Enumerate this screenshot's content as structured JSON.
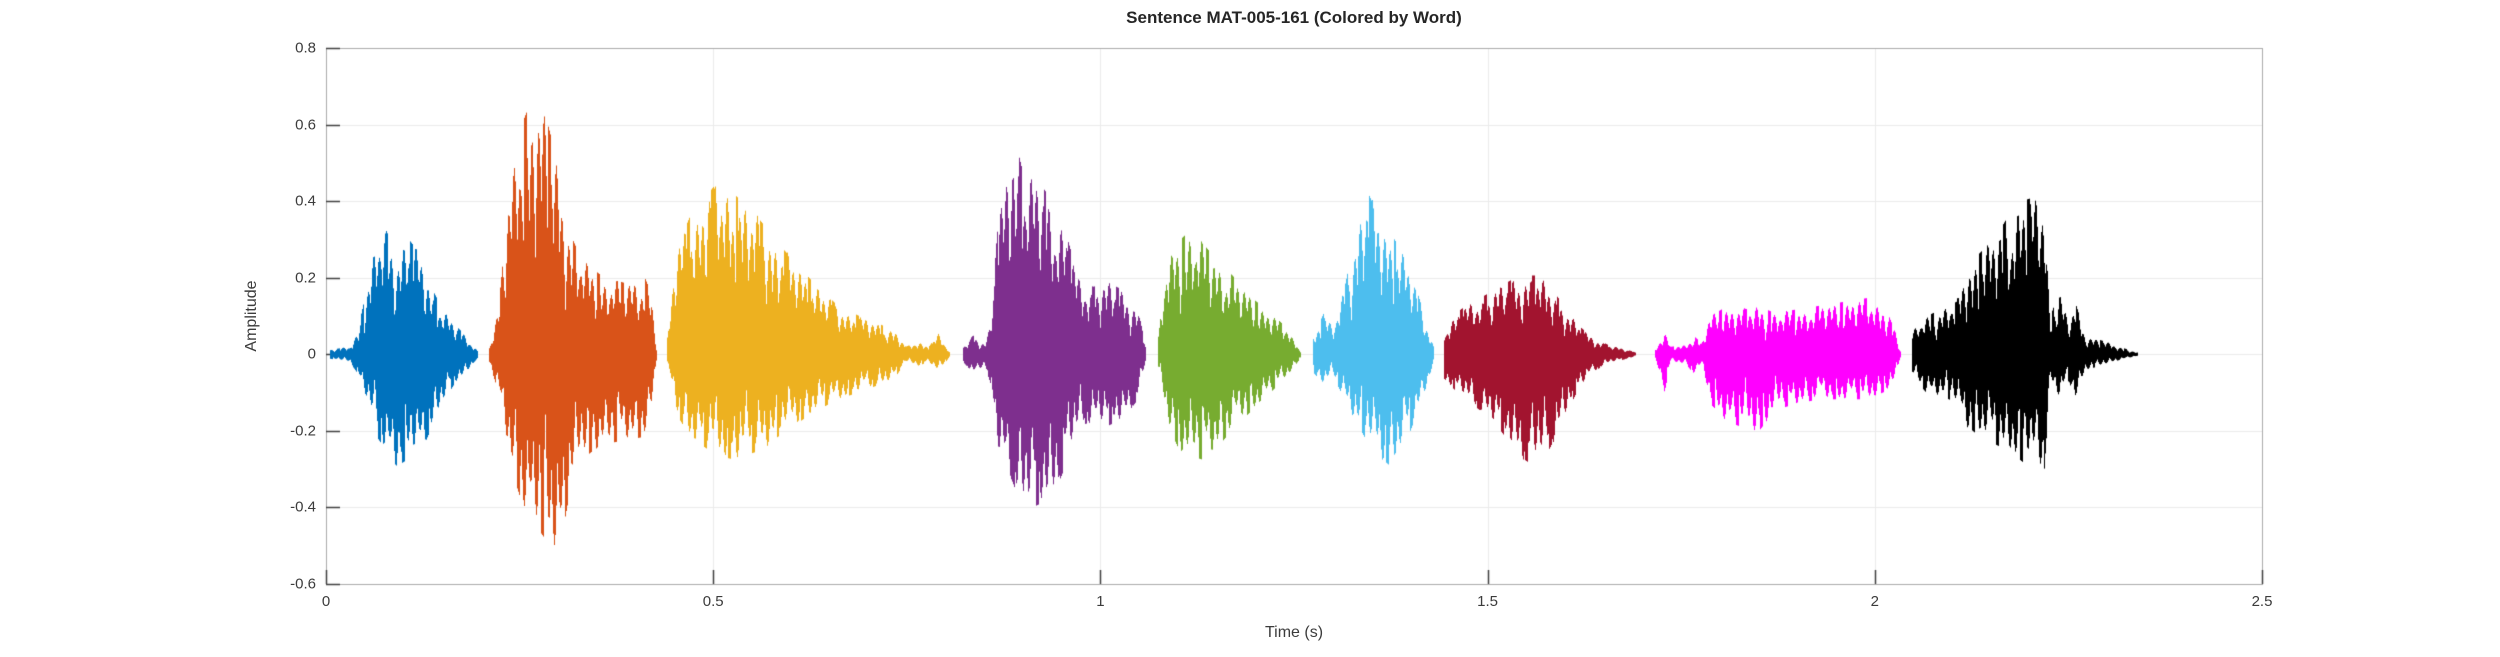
{
  "chart_data": {
    "type": "waveform",
    "title": "Sentence MAT-005-161 (Colored by Word)",
    "xlabel": "Time (s)",
    "ylabel": "Amplitude",
    "xlim": [
      0,
      2.5
    ],
    "ylim": [
      -0.6,
      0.8
    ],
    "grid": true,
    "x_ticks": {
      "values": [
        0,
        0.5,
        1,
        1.5,
        2,
        2.5
      ],
      "labels": [
        "0",
        "0.5",
        "1",
        "1.5",
        "2",
        "2.5"
      ]
    },
    "y_ticks": {
      "values": [
        -0.6,
        -0.4,
        -0.2,
        0,
        0.2,
        0.4,
        0.6,
        0.8
      ],
      "labels": [
        "-0.6",
        "-0.4",
        "-0.2",
        "0",
        "0.2",
        "0.4",
        "0.6",
        "0.8"
      ]
    },
    "style": {
      "grid_color": "#ebebeb",
      "box_color": "#ababab",
      "tick_color": "#404040",
      "background": "#ffffff"
    },
    "segments": [
      {
        "name": "word-1",
        "color": "#0072BD",
        "envelope": [
          [
            0.005,
            0.012,
            -0.012
          ],
          [
            0.03,
            0.02,
            -0.02
          ],
          [
            0.04,
            0.06,
            -0.05
          ],
          [
            0.055,
            0.2,
            -0.14
          ],
          [
            0.065,
            0.3,
            -0.22
          ],
          [
            0.075,
            0.34,
            -0.25
          ],
          [
            0.09,
            0.27,
            -0.3
          ],
          [
            0.105,
            0.31,
            -0.28
          ],
          [
            0.12,
            0.27,
            -0.27
          ],
          [
            0.135,
            0.18,
            -0.2
          ],
          [
            0.15,
            0.12,
            -0.13
          ],
          [
            0.165,
            0.08,
            -0.08
          ],
          [
            0.18,
            0.05,
            -0.05
          ],
          [
            0.195,
            0.01,
            -0.01
          ]
        ]
      },
      {
        "name": "word-2",
        "color": "#D95319",
        "envelope": [
          [
            0.21,
            0.02,
            -0.02
          ],
          [
            0.222,
            0.12,
            -0.1
          ],
          [
            0.235,
            0.4,
            -0.28
          ],
          [
            0.25,
            0.6,
            -0.38
          ],
          [
            0.265,
            0.68,
            -0.44
          ],
          [
            0.285,
            0.62,
            -0.5
          ],
          [
            0.3,
            0.5,
            -0.53
          ],
          [
            0.315,
            0.32,
            -0.36
          ],
          [
            0.33,
            0.25,
            -0.28
          ],
          [
            0.355,
            0.21,
            -0.24
          ],
          [
            0.385,
            0.19,
            -0.23
          ],
          [
            0.41,
            0.21,
            -0.22
          ],
          [
            0.42,
            0.16,
            -0.16
          ],
          [
            0.426,
            0.02,
            -0.02
          ]
        ]
      },
      {
        "name": "word-3",
        "color": "#EDB120",
        "envelope": [
          [
            0.44,
            0.04,
            -0.03
          ],
          [
            0.452,
            0.28,
            -0.16
          ],
          [
            0.47,
            0.37,
            -0.22
          ],
          [
            0.49,
            0.42,
            -0.25
          ],
          [
            0.505,
            0.46,
            -0.27
          ],
          [
            0.525,
            0.43,
            -0.28
          ],
          [
            0.555,
            0.37,
            -0.26
          ],
          [
            0.59,
            0.28,
            -0.21
          ],
          [
            0.625,
            0.2,
            -0.16
          ],
          [
            0.66,
            0.13,
            -0.12
          ],
          [
            0.69,
            0.1,
            -0.1
          ],
          [
            0.715,
            0.08,
            -0.08
          ],
          [
            0.735,
            0.06,
            -0.06
          ],
          [
            0.748,
            0.02,
            -0.02
          ],
          [
            0.765,
            0.035,
            -0.03
          ],
          [
            0.778,
            0.02,
            -0.02
          ],
          [
            0.79,
            0.055,
            -0.05
          ],
          [
            0.805,
            0.005,
            -0.005
          ]
        ]
      },
      {
        "name": "word-4",
        "color": "#7E2F8E",
        "envelope": [
          [
            0.822,
            0.02,
            -0.02
          ],
          [
            0.835,
            0.05,
            -0.05
          ],
          [
            0.85,
            0.03,
            -0.03
          ],
          [
            0.858,
            0.08,
            -0.08
          ],
          [
            0.866,
            0.32,
            -0.26
          ],
          [
            0.876,
            0.46,
            -0.3
          ],
          [
            0.886,
            0.6,
            -0.34
          ],
          [
            0.9,
            0.48,
            -0.42
          ],
          [
            0.92,
            0.46,
            -0.4
          ],
          [
            0.94,
            0.4,
            -0.37
          ],
          [
            0.958,
            0.3,
            -0.28
          ],
          [
            0.972,
            0.2,
            -0.19
          ],
          [
            0.99,
            0.18,
            -0.18
          ],
          [
            1.01,
            0.19,
            -0.19
          ],
          [
            1.03,
            0.17,
            -0.17
          ],
          [
            1.048,
            0.12,
            -0.12
          ],
          [
            1.058,
            0.02,
            -0.02
          ]
        ]
      },
      {
        "name": "word-5",
        "color": "#77AC30",
        "envelope": [
          [
            1.074,
            0.04,
            -0.04
          ],
          [
            1.085,
            0.24,
            -0.18
          ],
          [
            1.1,
            0.3,
            -0.25
          ],
          [
            1.115,
            0.33,
            -0.27
          ],
          [
            1.13,
            0.3,
            -0.28
          ],
          [
            1.15,
            0.25,
            -0.25
          ],
          [
            1.17,
            0.21,
            -0.2
          ],
          [
            1.195,
            0.15,
            -0.15
          ],
          [
            1.22,
            0.11,
            -0.1
          ],
          [
            1.24,
            0.07,
            -0.06
          ],
          [
            1.258,
            0.01,
            -0.01
          ]
        ]
      },
      {
        "name": "word-6",
        "color": "#4DBEEE",
        "envelope": [
          [
            1.275,
            0.05,
            -0.05
          ],
          [
            1.288,
            0.11,
            -0.08
          ],
          [
            1.3,
            0.07,
            -0.06
          ],
          [
            1.315,
            0.18,
            -0.12
          ],
          [
            1.33,
            0.33,
            -0.18
          ],
          [
            1.343,
            0.44,
            -0.23
          ],
          [
            1.358,
            0.37,
            -0.27
          ],
          [
            1.375,
            0.32,
            -0.3
          ],
          [
            1.393,
            0.26,
            -0.24
          ],
          [
            1.408,
            0.17,
            -0.16
          ],
          [
            1.42,
            0.09,
            -0.09
          ],
          [
            1.43,
            0.02,
            -0.02
          ]
        ]
      },
      {
        "name": "word-7",
        "color": "#A2142F",
        "envelope": [
          [
            1.444,
            0.07,
            -0.07
          ],
          [
            1.465,
            0.12,
            -0.11
          ],
          [
            1.49,
            0.15,
            -0.15
          ],
          [
            1.515,
            0.18,
            -0.2
          ],
          [
            1.54,
            0.21,
            -0.27
          ],
          [
            1.56,
            0.21,
            -0.3
          ],
          [
            1.58,
            0.18,
            -0.25
          ],
          [
            1.598,
            0.13,
            -0.17
          ],
          [
            1.615,
            0.08,
            -0.1
          ],
          [
            1.632,
            0.05,
            -0.05
          ],
          [
            1.655,
            0.025,
            -0.025
          ],
          [
            1.69,
            0.006,
            -0.006
          ]
        ]
      },
      {
        "name": "word-8",
        "color": "#FF00FF",
        "envelope": [
          [
            1.716,
            0.015,
            -0.015
          ],
          [
            1.728,
            0.06,
            -0.1
          ],
          [
            1.736,
            0.02,
            -0.02
          ],
          [
            1.755,
            0.025,
            -0.025
          ],
          [
            1.765,
            0.05,
            -0.05
          ],
          [
            1.776,
            0.03,
            -0.03
          ],
          [
            1.786,
            0.1,
            -0.13
          ],
          [
            1.81,
            0.13,
            -0.18
          ],
          [
            1.835,
            0.12,
            -0.2
          ],
          [
            1.848,
            0.13,
            -0.21
          ],
          [
            1.87,
            0.11,
            -0.15
          ],
          [
            1.9,
            0.12,
            -0.13
          ],
          [
            1.93,
            0.13,
            -0.12
          ],
          [
            1.96,
            0.14,
            -0.12
          ],
          [
            1.99,
            0.15,
            -0.12
          ],
          [
            2.012,
            0.13,
            -0.1
          ],
          [
            2.026,
            0.06,
            -0.08
          ],
          [
            2.032,
            0.01,
            -0.01
          ]
        ]
      },
      {
        "name": "word-9",
        "color": "#000000",
        "envelope": [
          [
            2.048,
            0.06,
            -0.06
          ],
          [
            2.065,
            0.1,
            -0.1
          ],
          [
            2.085,
            0.12,
            -0.11
          ],
          [
            2.105,
            0.14,
            -0.13
          ],
          [
            2.118,
            0.23,
            -0.19
          ],
          [
            2.135,
            0.27,
            -0.22
          ],
          [
            2.155,
            0.31,
            -0.24
          ],
          [
            2.175,
            0.38,
            -0.26
          ],
          [
            2.192,
            0.41,
            -0.29
          ],
          [
            2.207,
            0.42,
            -0.28
          ],
          [
            2.218,
            0.44,
            -0.32
          ],
          [
            2.226,
            0.1,
            -0.07
          ],
          [
            2.238,
            0.17,
            -0.12
          ],
          [
            2.25,
            0.08,
            -0.07
          ],
          [
            2.258,
            0.14,
            -0.12
          ],
          [
            2.272,
            0.05,
            -0.04
          ],
          [
            2.295,
            0.035,
            -0.03
          ],
          [
            2.315,
            0.02,
            -0.015
          ],
          [
            2.338,
            0.005,
            -0.005
          ]
        ]
      }
    ]
  }
}
